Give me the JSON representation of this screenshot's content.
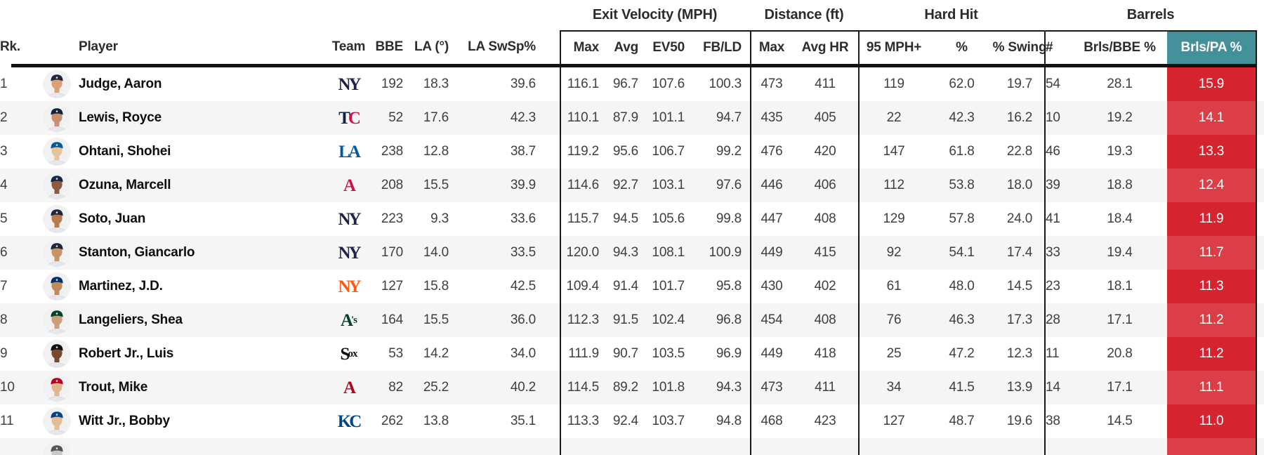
{
  "header": {
    "groups": [
      {
        "id": "exit-velocity",
        "label": "Exit Velocity (MPH)"
      },
      {
        "id": "distance",
        "label": "Distance (ft)"
      },
      {
        "id": "hard-hit",
        "label": "Hard Hit"
      },
      {
        "id": "barrels",
        "label": "Barrels"
      }
    ],
    "columns": {
      "rank": "Rk.",
      "avatar": "",
      "player": "Player",
      "team": "Team",
      "bbe": "BBE",
      "la": "LA (°)",
      "la_swsp": "LA SwSp%",
      "ev_max": "Max",
      "ev_avg": "Avg",
      "ev50": "EV50",
      "fb_ld": "FB/LD",
      "dist_max": "Max",
      "avg_hr": "Avg HR",
      "mph95": "95 MPH+",
      "hh_pct": "%",
      "hh_swing": "% Swing",
      "brl_num": "#",
      "brls_bbe": "Brls/BBE %",
      "brls_pa": "Brls/PA %"
    }
  },
  "colors": {
    "teal": "#44909a",
    "red": "#d7232e",
    "red_stripe": "#dc3e45",
    "stripe": "#f5f5f5",
    "header_bar": "#121212"
  },
  "rows": [
    {
      "rank": "1",
      "player": "Judge, Aaron",
      "team": "NYY",
      "cap": "#1c2841",
      "skin": "#d9a178",
      "logo": [
        [
          "N",
          "#1c2841"
        ],
        [
          "Y",
          "#1c2841"
        ]
      ],
      "bbe": "192",
      "la": "18.3",
      "la_swsp": "39.6",
      "ev_max": "116.1",
      "ev_avg": "96.7",
      "ev50": "107.6",
      "fb_ld": "100.3",
      "dist_max": "473",
      "avg_hr": "411",
      "mph95": "119",
      "hh_pct": "62.0",
      "hh_swing": "19.7",
      "brl_num": "54",
      "brls_bbe": "28.1",
      "brls_pa": "15.9"
    },
    {
      "rank": "2",
      "player": "Lewis, Royce",
      "team": "MIN",
      "cap": "#0c2341",
      "skin": "#c89070",
      "logo": [
        [
          "T",
          "#0c2341"
        ],
        [
          "C",
          "#d31145"
        ]
      ],
      "bbe": "52",
      "la": "17.6",
      "la_swsp": "42.3",
      "ev_max": "110.1",
      "ev_avg": "87.9",
      "ev50": "101.1",
      "fb_ld": "94.7",
      "dist_max": "435",
      "avg_hr": "405",
      "mph95": "22",
      "hh_pct": "42.3",
      "hh_swing": "16.2",
      "brl_num": "10",
      "brls_bbe": "19.2",
      "brls_pa": "14.1"
    },
    {
      "rank": "3",
      "player": "Ohtani, Shohei",
      "team": "LAD",
      "cap": "#005a9c",
      "skin": "#e8c39a",
      "logo": [
        [
          "L",
          "#005a9c"
        ],
        [
          "A",
          "#005a9c"
        ]
      ],
      "bbe": "238",
      "la": "12.8",
      "la_swsp": "38.7",
      "ev_max": "119.2",
      "ev_avg": "95.6",
      "ev50": "106.7",
      "fb_ld": "99.2",
      "dist_max": "476",
      "avg_hr": "420",
      "mph95": "147",
      "hh_pct": "61.8",
      "hh_swing": "22.8",
      "brl_num": "46",
      "brls_bbe": "19.3",
      "brls_pa": "13.3"
    },
    {
      "rank": "4",
      "player": "Ozuna, Marcell",
      "team": "ATL",
      "cap": "#13274f",
      "skin": "#8d5a3c",
      "logo": [
        [
          "A",
          "#ce1141"
        ]
      ],
      "bbe": "208",
      "la": "15.5",
      "la_swsp": "39.9",
      "ev_max": "114.6",
      "ev_avg": "92.7",
      "ev50": "103.1",
      "fb_ld": "97.6",
      "dist_max": "446",
      "avg_hr": "406",
      "mph95": "112",
      "hh_pct": "53.8",
      "hh_swing": "18.0",
      "brl_num": "39",
      "brls_bbe": "18.8",
      "brls_pa": "12.4"
    },
    {
      "rank": "5",
      "player": "Soto, Juan",
      "team": "NYY",
      "cap": "#1c2841",
      "skin": "#b97a4e",
      "logo": [
        [
          "N",
          "#1c2841"
        ],
        [
          "Y",
          "#1c2841"
        ]
      ],
      "bbe": "223",
      "la": "9.3",
      "la_swsp": "33.6",
      "ev_max": "115.7",
      "ev_avg": "94.5",
      "ev50": "105.6",
      "fb_ld": "99.8",
      "dist_max": "447",
      "avg_hr": "408",
      "mph95": "129",
      "hh_pct": "57.8",
      "hh_swing": "24.0",
      "brl_num": "41",
      "brls_bbe": "18.4",
      "brls_pa": "11.9"
    },
    {
      "rank": "6",
      "player": "Stanton, Giancarlo",
      "team": "NYY",
      "cap": "#1c2841",
      "skin": "#c79467",
      "logo": [
        [
          "N",
          "#1c2841"
        ],
        [
          "Y",
          "#1c2841"
        ]
      ],
      "bbe": "170",
      "la": "14.0",
      "la_swsp": "33.5",
      "ev_max": "120.0",
      "ev_avg": "94.3",
      "ev50": "108.1",
      "fb_ld": "100.9",
      "dist_max": "449",
      "avg_hr": "415",
      "mph95": "92",
      "hh_pct": "54.1",
      "hh_swing": "17.4",
      "brl_num": "33",
      "brls_bbe": "19.4",
      "brls_pa": "11.7"
    },
    {
      "rank": "7",
      "player": "Martinez, J.D.",
      "team": "NYM",
      "cap": "#002d72",
      "skin": "#c08a5e",
      "logo": [
        [
          "N",
          "#ff5910"
        ],
        [
          "Y",
          "#ff5910"
        ]
      ],
      "bbe": "127",
      "la": "15.8",
      "la_swsp": "42.5",
      "ev_max": "109.4",
      "ev_avg": "91.4",
      "ev50": "101.7",
      "fb_ld": "95.8",
      "dist_max": "430",
      "avg_hr": "402",
      "mph95": "61",
      "hh_pct": "48.0",
      "hh_swing": "14.5",
      "brl_num": "23",
      "brls_bbe": "18.1",
      "brls_pa": "11.3"
    },
    {
      "rank": "8",
      "player": "Langeliers, Shea",
      "team": "ATH",
      "cap": "#014228",
      "skin": "#caa07a",
      "logo": [
        [
          "A",
          "#014228"
        ],
        [
          "'s",
          "#014228",
          "s"
        ]
      ],
      "bbe": "164",
      "la": "15.5",
      "la_swsp": "36.0",
      "ev_max": "112.3",
      "ev_avg": "91.5",
      "ev50": "102.4",
      "fb_ld": "96.8",
      "dist_max": "454",
      "avg_hr": "408",
      "mph95": "76",
      "hh_pct": "46.3",
      "hh_swing": "17.3",
      "brl_num": "28",
      "brls_bbe": "17.1",
      "brls_pa": "11.2"
    },
    {
      "rank": "9",
      "player": "Robert Jr., Luis",
      "team": "CWS",
      "cap": "#0f0f0f",
      "skin": "#7a4a2e",
      "logo": [
        [
          "S",
          "#0f0f0f"
        ],
        [
          "o",
          "#0f0f0f",
          "s"
        ],
        [
          "x",
          "#0f0f0f",
          "s"
        ]
      ],
      "bbe": "53",
      "la": "14.2",
      "la_swsp": "34.0",
      "ev_max": "111.9",
      "ev_avg": "90.7",
      "ev50": "103.5",
      "fb_ld": "96.9",
      "dist_max": "449",
      "avg_hr": "418",
      "mph95": "25",
      "hh_pct": "47.2",
      "hh_swing": "12.3",
      "brl_num": "11",
      "brls_bbe": "20.8",
      "brls_pa": "11.2"
    },
    {
      "rank": "10",
      "player": "Trout, Mike",
      "team": "LAA",
      "cap": "#ba0021",
      "skin": "#e0b590",
      "logo": [
        [
          "A",
          "#ba0021"
        ]
      ],
      "bbe": "82",
      "la": "25.2",
      "la_swsp": "40.2",
      "ev_max": "114.5",
      "ev_avg": "89.2",
      "ev50": "101.8",
      "fb_ld": "94.3",
      "dist_max": "473",
      "avg_hr": "411",
      "mph95": "34",
      "hh_pct": "41.5",
      "hh_swing": "13.9",
      "brl_num": "14",
      "brls_bbe": "17.1",
      "brls_pa": "11.1"
    },
    {
      "rank": "11",
      "player": "Witt Jr., Bobby",
      "team": "KC",
      "cap": "#004687",
      "skin": "#e5bd95",
      "logo": [
        [
          "K",
          "#004687"
        ],
        [
          "C",
          "#004687"
        ]
      ],
      "bbe": "262",
      "la": "13.8",
      "la_swsp": "35.1",
      "ev_max": "113.3",
      "ev_avg": "92.4",
      "ev50": "103.7",
      "fb_ld": "94.8",
      "dist_max": "468",
      "avg_hr": "423",
      "mph95": "127",
      "hh_pct": "48.7",
      "hh_swing": "19.6",
      "brl_num": "38",
      "brls_bbe": "14.5",
      "brls_pa": "11.0"
    },
    {
      "rank": "",
      "player": "",
      "team": "",
      "cap": "#555555",
      "skin": "#c9c9c9",
      "partial": true,
      "logo": [],
      "bbe": "",
      "la": "",
      "la_swsp": "",
      "ev_max": "",
      "ev_avg": "",
      "ev50": "",
      "fb_ld": "",
      "dist_max": "",
      "avg_hr": "",
      "mph95": "",
      "hh_pct": "",
      "hh_swing": "",
      "brl_num": "",
      "brls_bbe": "",
      "brls_pa": ""
    }
  ]
}
